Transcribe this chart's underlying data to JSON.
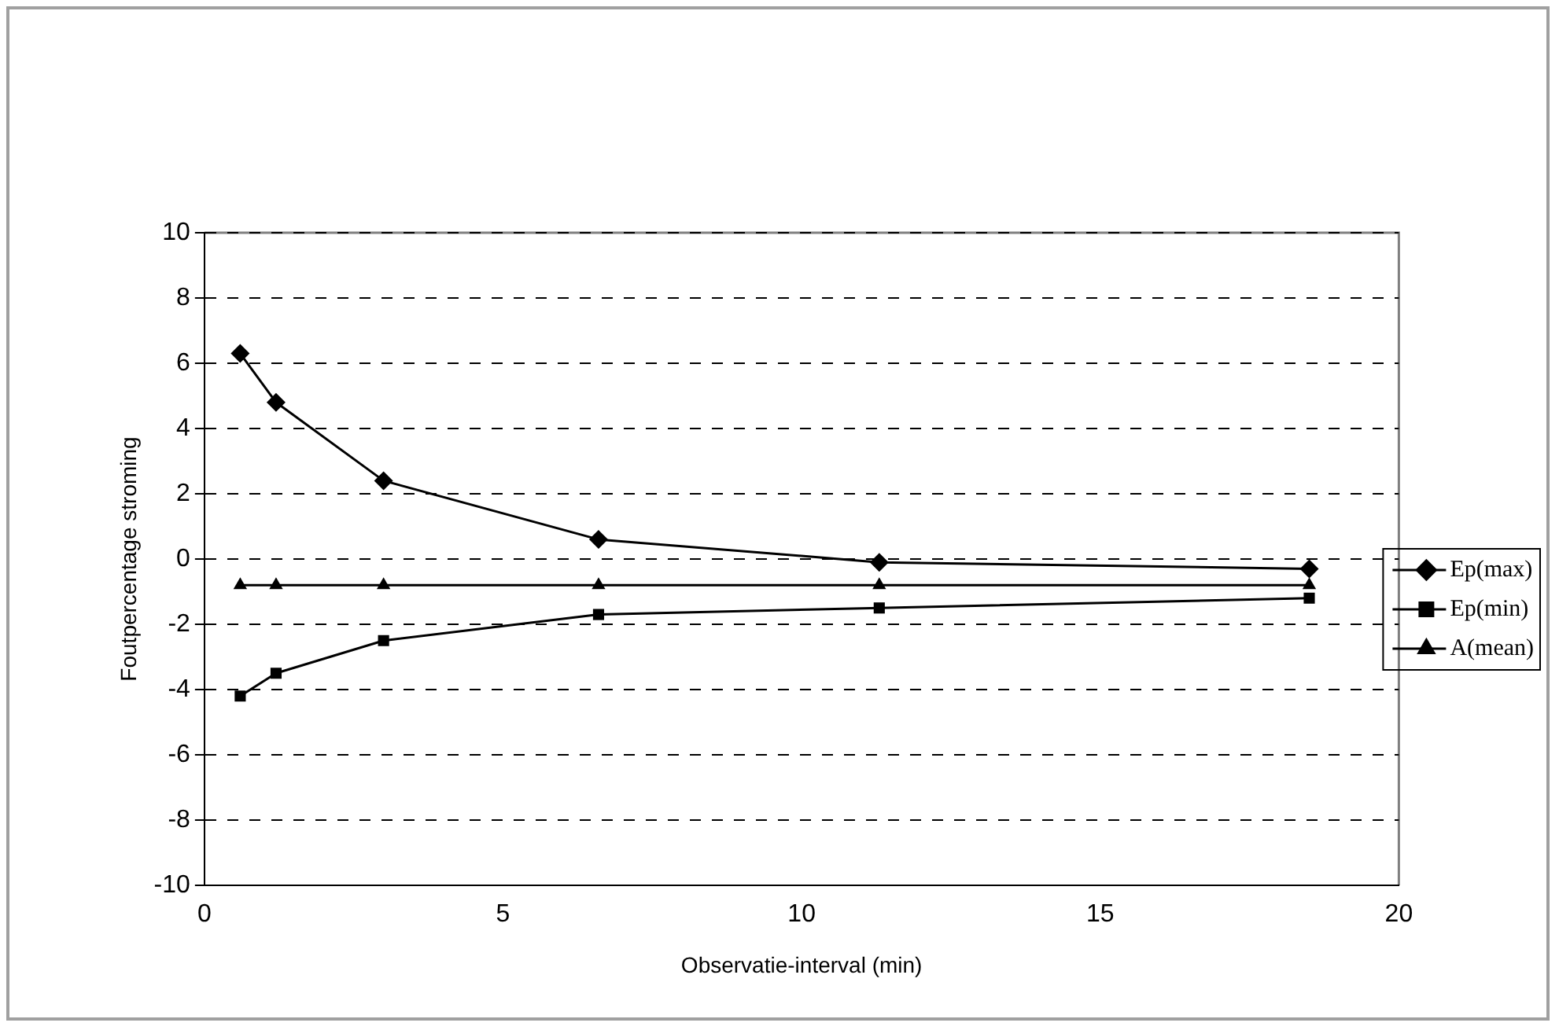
{
  "chart_data": {
    "type": "line",
    "xlabel": "Observatie-interval (min)",
    "ylabel": "Foutpercentage stroming",
    "x": [
      0.6,
      1.2,
      3,
      6.6,
      11.3,
      18.5
    ],
    "series": [
      {
        "name": "Ep(max)",
        "color": "#000000",
        "marker": "diamond",
        "values": [
          6.3,
          4.8,
          2.4,
          0.6,
          -0.1,
          -0.3
        ]
      },
      {
        "name": "Ep(min)",
        "color": "#000000",
        "marker": "square",
        "values": [
          -4.2,
          -3.5,
          -2.5,
          -1.7,
          -1.5,
          -1.2
        ]
      },
      {
        "name": "A(mean)",
        "color": "#000000",
        "marker": "triangle",
        "values": [
          -0.8,
          -0.8,
          -0.8,
          -0.8,
          -0.8,
          -0.8
        ]
      }
    ],
    "xlim": [
      0,
      20
    ],
    "xticks": [
      0,
      5,
      10,
      15,
      20
    ],
    "ylim": [
      -10,
      10
    ],
    "yticks": [
      -10,
      -8,
      -6,
      -4,
      -2,
      0,
      2,
      4,
      6,
      8,
      10
    ],
    "grid": "y",
    "legend": "right",
    "line_style": "solid"
  }
}
